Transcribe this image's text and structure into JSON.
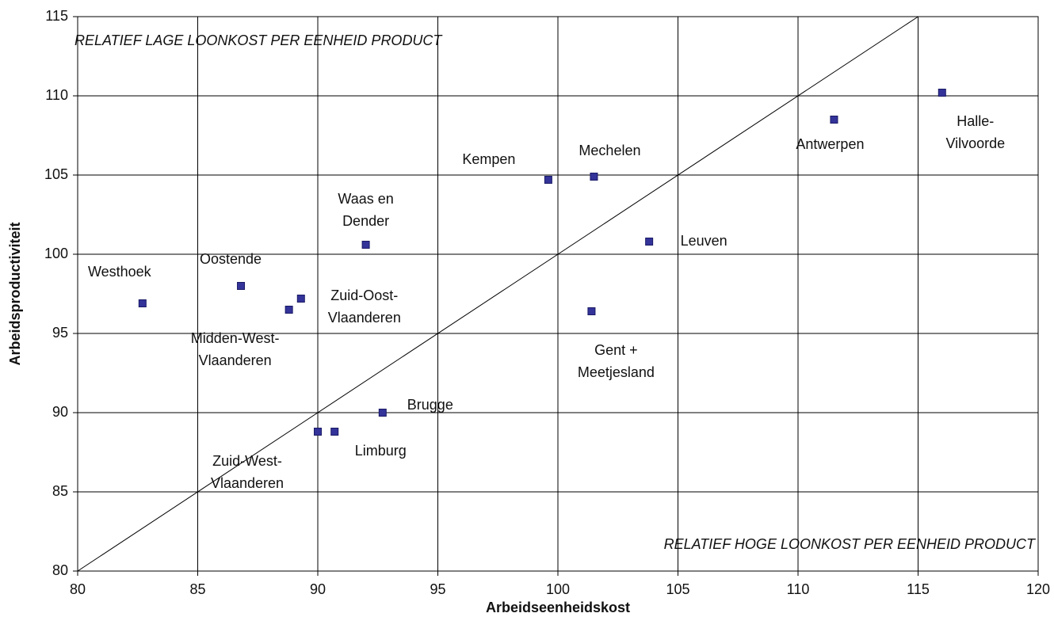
{
  "chart_data": {
    "type": "scatter",
    "x_label": "Arbeidseenheidskost",
    "y_label": "Arbeidsproductiviteit",
    "annotations": [
      "RELATIEF LAGE LOONKOST PER EENHEID PRODUCT",
      "RELATIEF HOGE LOONKOST PER EENHEID PRODUCT"
    ],
    "labels": [
      [
        "Westhoek"
      ],
      [
        "Oostende"
      ],
      [
        "Midden-West-",
        "Vlaanderen"
      ],
      [
        "Zuid-Oost-",
        "Vlaanderen"
      ],
      [
        "Waas en",
        "Dender"
      ],
      [
        "Zuid-West-",
        "Vlaanderen"
      ],
      [
        "Limburg"
      ],
      [
        "Brugge"
      ],
      [
        "Kempen"
      ],
      [
        "Mechelen"
      ],
      [
        "Leuven"
      ],
      [
        "Gent +",
        "Meetjesland"
      ],
      [
        "Antwerpen"
      ],
      [
        "Halle-",
        "Vilvoorde"
      ]
    ],
    "x": [
      82.7,
      86.8,
      88.8,
      89.3,
      92.0,
      90.0,
      90.7,
      92.7,
      99.6,
      101.5,
      103.8,
      101.4,
      111.5,
      116.0
    ],
    "values": [
      96.9,
      98.0,
      96.5,
      97.2,
      100.6,
      88.8,
      88.8,
      90.0,
      104.7,
      104.9,
      100.8,
      96.4,
      108.5,
      110.2
    ],
    "color": "#333399",
    "xlim": [
      80,
      120
    ],
    "xticks": [
      80,
      85,
      90,
      95,
      100,
      105,
      110,
      115,
      120
    ],
    "ylim": [
      80,
      115
    ],
    "yticks": [
      80,
      85,
      90,
      95,
      100,
      105,
      110,
      115
    ],
    "grid": true
  }
}
